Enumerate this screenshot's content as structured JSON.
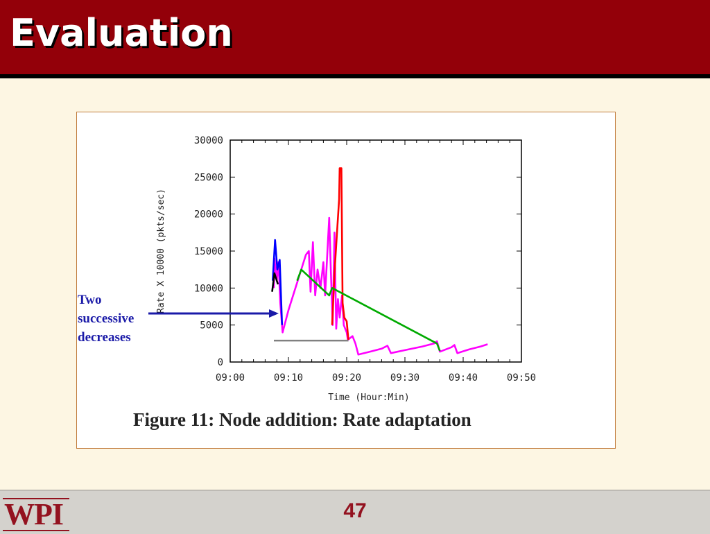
{
  "slide": {
    "title": "Evaluation",
    "page_number": "47",
    "logo_text": "WPI"
  },
  "figure": {
    "caption": "Figure 11: Node addition: Rate adaptation"
  },
  "annotation": {
    "lines": [
      "Two",
      "successive",
      "decreases"
    ]
  },
  "colors": {
    "header_bg": "#930009",
    "slide_bg": "#fdf6e3",
    "accent": "#93121f",
    "annotation": "#1a1aa8"
  },
  "chart_data": {
    "type": "line",
    "title": "",
    "xlabel": "Time (Hour:Min)",
    "ylabel": "Rate X 10000 (pkts/sec)",
    "xlim": [
      0,
      50
    ],
    "ylim": [
      0,
      30000
    ],
    "x_ticks": [
      "09:00",
      "09:10",
      "09:20",
      "09:30",
      "09:40",
      "09:50"
    ],
    "y_ticks": [
      "0",
      "5000",
      "10000",
      "15000",
      "20000",
      "25000",
      "30000"
    ],
    "grid": false,
    "series": [
      {
        "color": "#ff00ff",
        "points": [
          [
            7.5,
            10000
          ],
          [
            7.6,
            14000
          ],
          [
            8,
            11000
          ],
          [
            8.3,
            13500
          ],
          [
            8.6,
            8000
          ],
          [
            9,
            4000
          ],
          [
            10,
            7000
          ],
          [
            11,
            9500
          ],
          [
            12,
            12000
          ],
          [
            13,
            14500
          ],
          [
            13.5,
            15000
          ],
          [
            13.8,
            9500
          ],
          [
            14.2,
            16200
          ],
          [
            14.6,
            9000
          ],
          [
            15,
            12500
          ],
          [
            15.5,
            10000
          ],
          [
            16,
            13500
          ],
          [
            16.3,
            9000
          ],
          [
            16.8,
            16500
          ],
          [
            17,
            19500
          ],
          [
            17.3,
            12000
          ],
          [
            17.6,
            5000
          ],
          [
            17.9,
            17500
          ],
          [
            18.2,
            4500
          ],
          [
            18.5,
            8500
          ],
          [
            18.8,
            6000
          ],
          [
            19.2,
            9000
          ],
          [
            19.5,
            5000
          ],
          [
            20,
            4000
          ],
          [
            20.2,
            3000
          ],
          [
            21,
            3500
          ],
          [
            21.5,
            2500
          ],
          [
            22,
            1000
          ],
          [
            24,
            1400
          ],
          [
            26,
            1800
          ],
          [
            27,
            2200
          ],
          [
            27.6,
            1200
          ],
          [
            30,
            1600
          ],
          [
            33,
            2100
          ],
          [
            35,
            2500
          ],
          [
            35.5,
            2800
          ],
          [
            36,
            1400
          ],
          [
            38,
            2000
          ],
          [
            38.5,
            2300
          ],
          [
            39,
            1200
          ],
          [
            41,
            1700
          ],
          [
            43,
            2100
          ],
          [
            44.2,
            2400
          ]
        ]
      },
      {
        "color": "#ff0000",
        "points": [
          [
            17.5,
            5000
          ],
          [
            17.9,
            12000
          ],
          [
            18.3,
            17000
          ],
          [
            18.7,
            22000
          ],
          [
            18.8,
            26200
          ],
          [
            19.1,
            26200
          ],
          [
            19.3,
            8000
          ],
          [
            19.6,
            6000
          ],
          [
            20,
            5500
          ],
          [
            20.3,
            3000
          ]
        ]
      },
      {
        "color": "#0000ff",
        "points": [
          [
            7.3,
            11000
          ],
          [
            7.7,
            16500
          ],
          [
            8.1,
            12500
          ],
          [
            8.5,
            13800
          ],
          [
            8.9,
            5000
          ]
        ]
      },
      {
        "color": "#000000",
        "points": [
          [
            7.2,
            9500
          ],
          [
            7.6,
            12000
          ],
          [
            8.2,
            10500
          ]
        ]
      },
      {
        "color": "#00aa00",
        "points": [
          [
            11.5,
            11000
          ],
          [
            12.2,
            12500
          ],
          [
            17,
            9000
          ],
          [
            17.5,
            10000
          ],
          [
            35.5,
            2500
          ],
          [
            36,
            1500
          ]
        ]
      },
      {
        "color": "#808080",
        "points": [
          [
            7.5,
            2900
          ],
          [
            20.3,
            2900
          ]
        ]
      }
    ]
  }
}
